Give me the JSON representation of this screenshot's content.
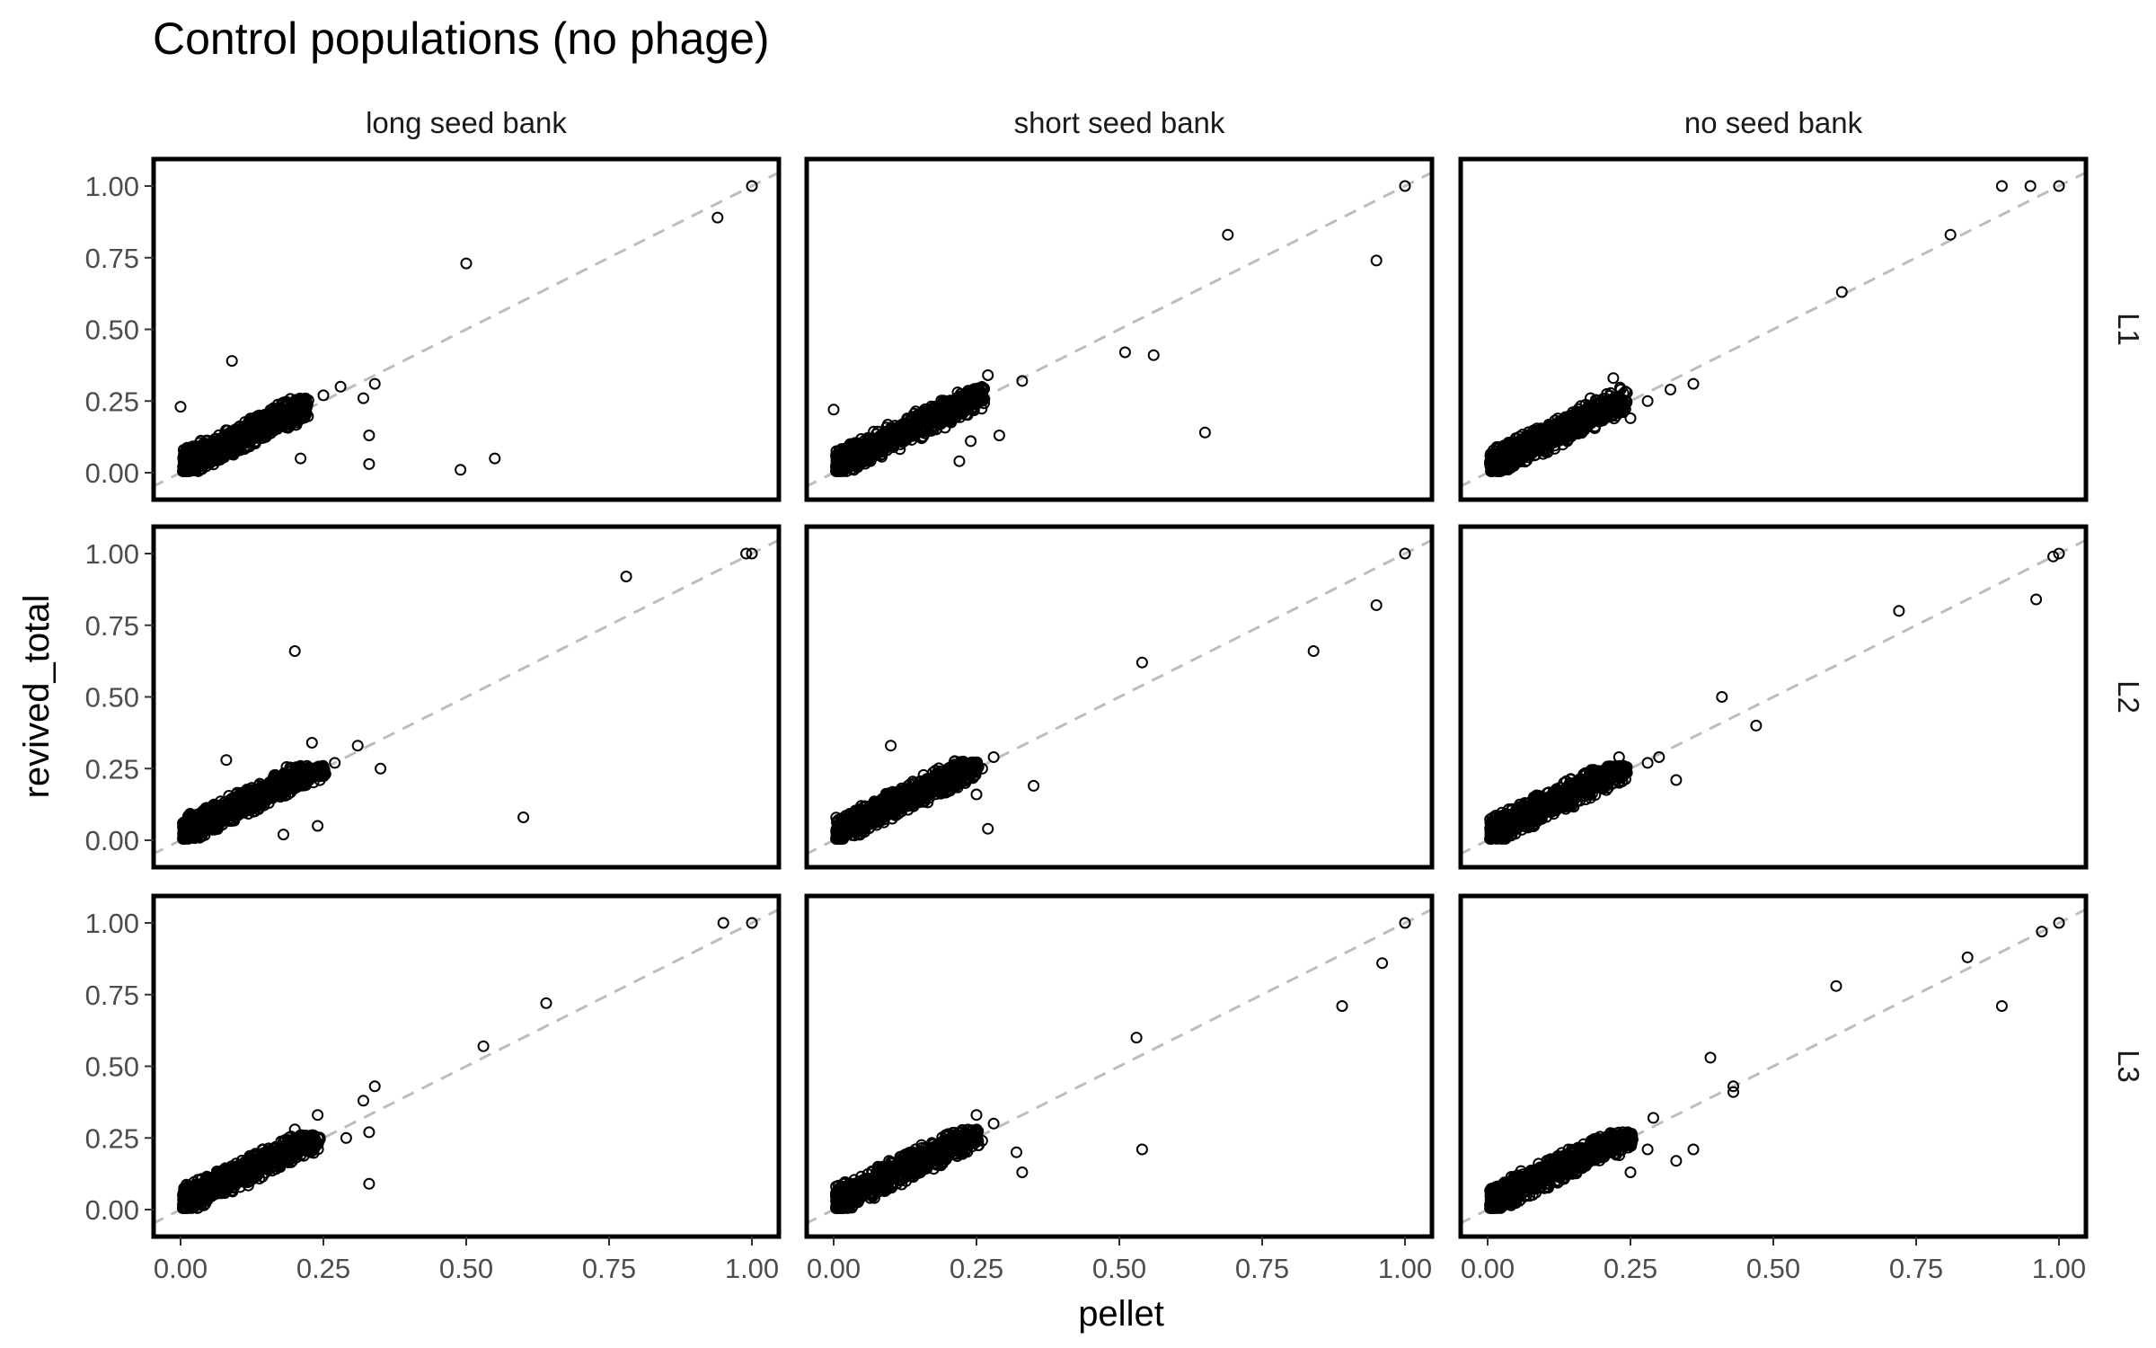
{
  "chart_data": {
    "type": "scatter",
    "title": "Control populations (no phage)",
    "xlabel": "pellet",
    "ylabel": "revived_total",
    "xlim": [
      0,
      1
    ],
    "ylim": [
      0,
      1
    ],
    "x_ticks": [
      "0.00",
      "0.25",
      "0.50",
      "0.75",
      "1.00"
    ],
    "y_ticks": [
      "0.00",
      "0.25",
      "0.50",
      "0.75",
      "1.00"
    ],
    "columns": [
      "long seed bank",
      "short seed bank",
      "no seed bank"
    ],
    "rows": [
      "L1",
      "L2",
      "L3"
    ],
    "reference_line": "y = x (dashed, grey)",
    "grid": false,
    "legend": "none",
    "colors": {
      "points": "#000000",
      "reference_line": "#bdbdbd",
      "panel_border": "#000000"
    },
    "panels": [
      {
        "column": "long seed bank",
        "row": "L1",
        "cluster": {
          "x_max": 0.22,
          "y_max": 0.26,
          "count": 700
        },
        "outliers": [
          [
            1.0,
            1.0
          ],
          [
            0.94,
            0.89
          ],
          [
            0.5,
            0.73
          ],
          [
            0.09,
            0.39
          ],
          [
            0.0,
            0.23
          ],
          [
            0.34,
            0.31
          ],
          [
            0.32,
            0.26
          ],
          [
            0.28,
            0.3
          ],
          [
            0.25,
            0.27
          ],
          [
            0.33,
            0.13
          ],
          [
            0.33,
            0.03
          ],
          [
            0.55,
            0.05
          ],
          [
            0.49,
            0.01
          ],
          [
            0.21,
            0.05
          ]
        ]
      },
      {
        "column": "short seed bank",
        "row": "L1",
        "cluster": {
          "x_max": 0.26,
          "y_max": 0.3,
          "count": 700
        },
        "outliers": [
          [
            1.0,
            1.0
          ],
          [
            0.69,
            0.83
          ],
          [
            0.95,
            0.74
          ],
          [
            0.51,
            0.42
          ],
          [
            0.56,
            0.41
          ],
          [
            0.65,
            0.14
          ],
          [
            0.33,
            0.32
          ],
          [
            0.27,
            0.34
          ],
          [
            0.29,
            0.13
          ],
          [
            0.0,
            0.22
          ],
          [
            0.22,
            0.04
          ],
          [
            0.24,
            0.11
          ]
        ]
      },
      {
        "column": "no seed bank",
        "row": "L1",
        "cluster": {
          "x_max": 0.24,
          "y_max": 0.3,
          "count": 700
        },
        "outliers": [
          [
            1.0,
            1.0
          ],
          [
            0.9,
            1.0
          ],
          [
            0.95,
            1.0
          ],
          [
            0.81,
            0.83
          ],
          [
            0.62,
            0.63
          ],
          [
            0.36,
            0.31
          ],
          [
            0.32,
            0.29
          ],
          [
            0.25,
            0.19
          ],
          [
            0.22,
            0.33
          ],
          [
            0.18,
            0.26
          ],
          [
            0.28,
            0.25
          ]
        ]
      },
      {
        "column": "long seed bank",
        "row": "L2",
        "cluster": {
          "x_max": 0.25,
          "y_max": 0.26,
          "count": 700
        },
        "outliers": [
          [
            0.99,
            1.0
          ],
          [
            1.0,
            1.0
          ],
          [
            0.78,
            0.92
          ],
          [
            0.2,
            0.66
          ],
          [
            0.6,
            0.08
          ],
          [
            0.31,
            0.33
          ],
          [
            0.23,
            0.34
          ],
          [
            0.35,
            0.25
          ],
          [
            0.27,
            0.27
          ],
          [
            0.24,
            0.05
          ],
          [
            0.18,
            0.02
          ],
          [
            0.08,
            0.28
          ]
        ]
      },
      {
        "column": "short seed bank",
        "row": "L2",
        "cluster": {
          "x_max": 0.25,
          "y_max": 0.28,
          "count": 700
        },
        "outliers": [
          [
            1.0,
            1.0
          ],
          [
            0.95,
            0.82
          ],
          [
            0.84,
            0.66
          ],
          [
            0.54,
            0.62
          ],
          [
            0.35,
            0.19
          ],
          [
            0.28,
            0.29
          ],
          [
            0.26,
            0.25
          ],
          [
            0.27,
            0.04
          ],
          [
            0.1,
            0.33
          ],
          [
            0.25,
            0.16
          ]
        ]
      },
      {
        "column": "no seed bank",
        "row": "L2",
        "cluster": {
          "x_max": 0.24,
          "y_max": 0.26,
          "count": 700
        },
        "outliers": [
          [
            1.0,
            1.0
          ],
          [
            0.99,
            0.99
          ],
          [
            0.96,
            0.84
          ],
          [
            0.72,
            0.8
          ],
          [
            0.41,
            0.5
          ],
          [
            0.47,
            0.4
          ],
          [
            0.33,
            0.21
          ],
          [
            0.3,
            0.29
          ],
          [
            0.28,
            0.27
          ],
          [
            0.23,
            0.29
          ],
          [
            0.21,
            0.2
          ]
        ]
      },
      {
        "column": "long seed bank",
        "row": "L3",
        "cluster": {
          "x_max": 0.24,
          "y_max": 0.26,
          "count": 700
        },
        "outliers": [
          [
            1.0,
            1.0
          ],
          [
            0.95,
            1.0
          ],
          [
            0.64,
            0.72
          ],
          [
            0.53,
            0.57
          ],
          [
            0.34,
            0.43
          ],
          [
            0.32,
            0.38
          ],
          [
            0.33,
            0.27
          ],
          [
            0.33,
            0.09
          ],
          [
            0.24,
            0.33
          ],
          [
            0.29,
            0.25
          ],
          [
            0.2,
            0.28
          ]
        ]
      },
      {
        "column": "short seed bank",
        "row": "L3",
        "cluster": {
          "x_max": 0.25,
          "y_max": 0.28,
          "count": 700
        },
        "outliers": [
          [
            1.0,
            1.0
          ],
          [
            0.96,
            0.86
          ],
          [
            0.89,
            0.71
          ],
          [
            0.53,
            0.6
          ],
          [
            0.54,
            0.21
          ],
          [
            0.32,
            0.2
          ],
          [
            0.33,
            0.13
          ],
          [
            0.28,
            0.3
          ],
          [
            0.25,
            0.33
          ],
          [
            0.26,
            0.24
          ]
        ]
      },
      {
        "column": "no seed bank",
        "row": "L3",
        "cluster": {
          "x_max": 0.25,
          "y_max": 0.27,
          "count": 700
        },
        "outliers": [
          [
            1.0,
            1.0
          ],
          [
            0.97,
            0.97
          ],
          [
            0.84,
            0.88
          ],
          [
            0.9,
            0.71
          ],
          [
            0.61,
            0.78
          ],
          [
            0.39,
            0.53
          ],
          [
            0.43,
            0.43
          ],
          [
            0.43,
            0.41
          ],
          [
            0.36,
            0.21
          ],
          [
            0.33,
            0.17
          ],
          [
            0.29,
            0.32
          ],
          [
            0.25,
            0.13
          ],
          [
            0.28,
            0.21
          ]
        ]
      }
    ]
  }
}
